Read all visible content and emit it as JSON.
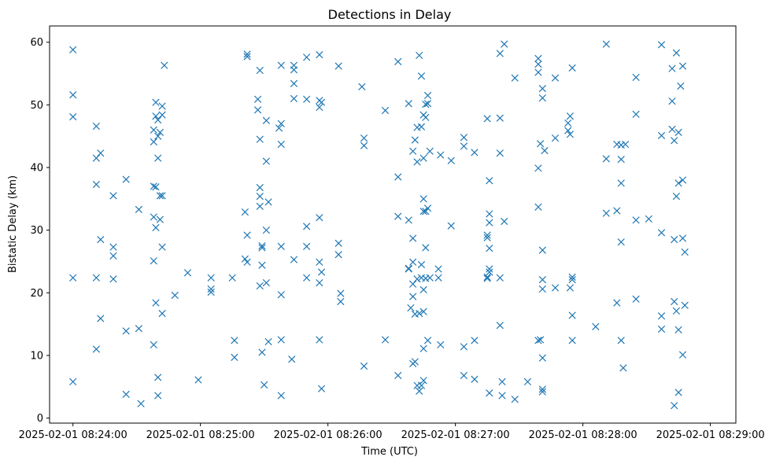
{
  "chart_data": {
    "type": "scatter",
    "title": "Detections in Delay",
    "xlabel": "Time (UTC)",
    "ylabel": "Bistatic Delay (km)",
    "marker": "x",
    "color": "#1f77b4",
    "grid": false,
    "legend": "none",
    "x_ticks": [
      "2025-02-01 08:24:00",
      "2025-02-01 08:25:00",
      "2025-02-01 08:26:00",
      "2025-02-01 08:27:00",
      "2025-02-01 08:28:00",
      "2025-02-01 08:29:00"
    ],
    "y_ticks": [
      "0",
      "10",
      "20",
      "30",
      "40",
      "50",
      "60"
    ],
    "xlim": [
      "2025-02-01 08:23:49",
      "2025-02-01 08:29:12"
    ],
    "ylim": [
      -0.8,
      62.6
    ],
    "points": [
      [
        "2025-02-01 08:24:00",
        58.8
      ],
      [
        "2025-02-01 08:24:00",
        51.6
      ],
      [
        "2025-02-01 08:24:00",
        48.1
      ],
      [
        "2025-02-01 08:24:00",
        22.4
      ],
      [
        "2025-02-01 08:24:00",
        5.8
      ],
      [
        "2025-02-01 08:24:11",
        46.6
      ],
      [
        "2025-02-01 08:24:11",
        41.5
      ],
      [
        "2025-02-01 08:24:13",
        42.3
      ],
      [
        "2025-02-01 08:24:11",
        37.3
      ],
      [
        "2025-02-01 08:24:13",
        28.5
      ],
      [
        "2025-02-01 08:24:11",
        22.4
      ],
      [
        "2025-02-01 08:24:13",
        15.9
      ],
      [
        "2025-02-01 08:24:11",
        11.0
      ],
      [
        "2025-02-01 08:24:19",
        35.5
      ],
      [
        "2025-02-01 08:24:19",
        27.3
      ],
      [
        "2025-02-01 08:24:19",
        25.9
      ],
      [
        "2025-02-01 08:24:19",
        22.2
      ],
      [
        "2025-02-01 08:24:25",
        38.1
      ],
      [
        "2025-02-01 08:24:25",
        13.9
      ],
      [
        "2025-02-01 08:24:25",
        3.8
      ],
      [
        "2025-02-01 08:24:31",
        33.3
      ],
      [
        "2025-02-01 08:24:31",
        14.3
      ],
      [
        "2025-02-01 08:24:32",
        2.3
      ],
      [
        "2025-02-01 08:24:38",
        46.0
      ],
      [
        "2025-02-01 08:24:38",
        44.1
      ],
      [
        "2025-02-01 08:24:38",
        37.0
      ],
      [
        "2025-02-01 08:24:39",
        36.9
      ],
      [
        "2025-02-01 08:24:38",
        32.1
      ],
      [
        "2025-02-01 08:24:39",
        30.4
      ],
      [
        "2025-02-01 08:24:38",
        25.1
      ],
      [
        "2025-02-01 08:24:39",
        18.4
      ],
      [
        "2025-02-01 08:24:38",
        11.7
      ],
      [
        "2025-02-01 08:24:39",
        50.4
      ],
      [
        "2025-02-01 08:24:39",
        48.2
      ],
      [
        "2025-02-01 08:24:40",
        47.6
      ],
      [
        "2025-02-01 08:24:40",
        45.0
      ],
      [
        "2025-02-01 08:24:40",
        41.5
      ],
      [
        "2025-02-01 08:24:41",
        35.5
      ],
      [
        "2025-02-01 08:24:41",
        31.7
      ],
      [
        "2025-02-01 08:24:40",
        6.5
      ],
      [
        "2025-02-01 08:24:40",
        3.6
      ],
      [
        "2025-02-01 08:24:42",
        49.8
      ],
      [
        "2025-02-01 08:24:42",
        48.4
      ],
      [
        "2025-02-01 08:24:41",
        45.6
      ],
      [
        "2025-02-01 08:24:42",
        35.5
      ],
      [
        "2025-02-01 08:24:42",
        27.3
      ],
      [
        "2025-02-01 08:24:42",
        16.7
      ],
      [
        "2025-02-01 08:24:43",
        56.3
      ],
      [
        "2025-02-01 08:24:48",
        19.6
      ],
      [
        "2025-02-01 08:24:54",
        23.2
      ],
      [
        "2025-02-01 08:24:59",
        6.1
      ],
      [
        "2025-02-01 08:25:05",
        22.4
      ],
      [
        "2025-02-01 08:25:05",
        20.6
      ],
      [
        "2025-02-01 08:25:05",
        20.1
      ],
      [
        "2025-02-01 08:25:15",
        22.4
      ],
      [
        "2025-02-01 08:25:16",
        12.4
      ],
      [
        "2025-02-01 08:25:16",
        9.7
      ],
      [
        "2025-02-01 08:25:22",
        58.1
      ],
      [
        "2025-02-01 08:25:22",
        57.7
      ],
      [
        "2025-02-01 08:25:21",
        32.9
      ],
      [
        "2025-02-01 08:25:22",
        29.2
      ],
      [
        "2025-02-01 08:25:21",
        25.4
      ],
      [
        "2025-02-01 08:25:22",
        24.9
      ],
      [
        "2025-02-01 08:25:27",
        50.9
      ],
      [
        "2025-02-01 08:25:27",
        49.2
      ],
      [
        "2025-02-01 08:25:28",
        55.5
      ],
      [
        "2025-02-01 08:25:28",
        44.5
      ],
      [
        "2025-02-01 08:25:28",
        36.8
      ],
      [
        "2025-02-01 08:25:28",
        35.4
      ],
      [
        "2025-02-01 08:25:28",
        33.8
      ],
      [
        "2025-02-01 08:25:29",
        27.5
      ],
      [
        "2025-02-01 08:25:29",
        27.2
      ],
      [
        "2025-02-01 08:25:29",
        24.4
      ],
      [
        "2025-02-01 08:25:28",
        21.1
      ],
      [
        "2025-02-01 08:25:29",
        10.5
      ],
      [
        "2025-02-01 08:25:30",
        5.3
      ],
      [
        "2025-02-01 08:25:31",
        47.5
      ],
      [
        "2025-02-01 08:25:31",
        41.0
      ],
      [
        "2025-02-01 08:25:32",
        34.5
      ],
      [
        "2025-02-01 08:25:31",
        30.0
      ],
      [
        "2025-02-01 08:25:31",
        21.6
      ],
      [
        "2025-02-01 08:25:32",
        12.2
      ],
      [
        "2025-02-01 08:25:37",
        46.3
      ],
      [
        "2025-02-01 08:25:38",
        47.0
      ],
      [
        "2025-02-01 08:25:38",
        56.3
      ],
      [
        "2025-02-01 08:25:38",
        43.7
      ],
      [
        "2025-02-01 08:25:38",
        27.4
      ],
      [
        "2025-02-01 08:25:38",
        19.7
      ],
      [
        "2025-02-01 08:25:38",
        12.5
      ],
      [
        "2025-02-01 08:25:38",
        3.6
      ],
      [
        "2025-02-01 08:25:44",
        56.3
      ],
      [
        "2025-02-01 08:25:44",
        55.6
      ],
      [
        "2025-02-01 08:25:44",
        53.4
      ],
      [
        "2025-02-01 08:25:44",
        51.0
      ],
      [
        "2025-02-01 08:25:44",
        25.3
      ],
      [
        "2025-02-01 08:25:43",
        9.4
      ],
      [
        "2025-02-01 08:25:50",
        57.6
      ],
      [
        "2025-02-01 08:25:50",
        50.9
      ],
      [
        "2025-02-01 08:25:50",
        30.6
      ],
      [
        "2025-02-01 08:25:50",
        27.4
      ],
      [
        "2025-02-01 08:25:50",
        22.4
      ],
      [
        "2025-02-01 08:25:56",
        58.0
      ],
      [
        "2025-02-01 08:25:56",
        50.7
      ],
      [
        "2025-02-01 08:25:57",
        50.4
      ],
      [
        "2025-02-01 08:25:56",
        49.6
      ],
      [
        "2025-02-01 08:25:56",
        32.0
      ],
      [
        "2025-02-01 08:25:56",
        24.9
      ],
      [
        "2025-02-01 08:25:57",
        23.3
      ],
      [
        "2025-02-01 08:25:56",
        21.6
      ],
      [
        "2025-02-01 08:25:56",
        12.5
      ],
      [
        "2025-02-01 08:25:57",
        4.7
      ],
      [
        "2025-02-01 08:26:05",
        56.2
      ],
      [
        "2025-02-01 08:26:05",
        27.9
      ],
      [
        "2025-02-01 08:26:05",
        26.1
      ],
      [
        "2025-02-01 08:26:06",
        19.9
      ],
      [
        "2025-02-01 08:26:06",
        18.6
      ],
      [
        "2025-02-01 08:26:16",
        52.9
      ],
      [
        "2025-02-01 08:26:17",
        44.7
      ],
      [
        "2025-02-01 08:26:17",
        43.5
      ],
      [
        "2025-02-01 08:26:17",
        8.3
      ],
      [
        "2025-02-01 08:26:27",
        49.1
      ],
      [
        "2025-02-01 08:26:27",
        12.5
      ],
      [
        "2025-02-01 08:26:33",
        56.9
      ],
      [
        "2025-02-01 08:26:33",
        38.5
      ],
      [
        "2025-02-01 08:26:33",
        32.2
      ],
      [
        "2025-02-01 08:26:33",
        6.8
      ],
      [
        "2025-02-01 08:26:38",
        50.2
      ],
      [
        "2025-02-01 08:26:38",
        31.6
      ],
      [
        "2025-02-01 08:26:38",
        23.8
      ],
      [
        "2025-02-01 08:26:38",
        23.9
      ],
      [
        "2025-02-01 08:26:39",
        17.6
      ],
      [
        "2025-02-01 08:26:40",
        42.6
      ],
      [
        "2025-02-01 08:26:40",
        28.7
      ],
      [
        "2025-02-01 08:26:40",
        24.9
      ],
      [
        "2025-02-01 08:26:40",
        21.4
      ],
      [
        "2025-02-01 08:26:40",
        19.4
      ],
      [
        "2025-02-01 08:26:41",
        16.6
      ],
      [
        "2025-02-01 08:26:41",
        9.0
      ],
      [
        "2025-02-01 08:26:40",
        8.7
      ],
      [
        "2025-02-01 08:26:41",
        44.4
      ],
      [
        "2025-02-01 08:26:42",
        46.4
      ],
      [
        "2025-02-01 08:26:42",
        40.9
      ],
      [
        "2025-02-01 08:26:42",
        22.2
      ],
      [
        "2025-02-01 08:26:43",
        16.7
      ],
      [
        "2025-02-01 08:26:42",
        5.2
      ],
      [
        "2025-02-01 08:26:43",
        4.3
      ],
      [
        "2025-02-01 08:26:43",
        57.9
      ],
      [
        "2025-02-01 08:26:44",
        54.6
      ],
      [
        "2025-02-01 08:26:44",
        46.5
      ],
      [
        "2025-02-01 08:26:44",
        24.5
      ],
      [
        "2025-02-01 08:26:44",
        22.4
      ],
      [
        "2025-02-01 08:26:44",
        5.2
      ],
      [
        "2025-02-01 08:26:45",
        48.4
      ],
      [
        "2025-02-01 08:26:45",
        41.5
      ],
      [
        "2025-02-01 08:26:45",
        35.0
      ],
      [
        "2025-02-01 08:26:45",
        33.0
      ],
      [
        "2025-02-01 08:26:45",
        20.5
      ],
      [
        "2025-02-01 08:26:45",
        17.0
      ],
      [
        "2025-02-01 08:26:45",
        11.1
      ],
      [
        "2025-02-01 08:26:45",
        6.0
      ],
      [
        "2025-02-01 08:26:46",
        50.1
      ],
      [
        "2025-02-01 08:26:46",
        48.0
      ],
      [
        "2025-02-01 08:26:46",
        33.0
      ],
      [
        "2025-02-01 08:26:46",
        27.2
      ],
      [
        "2025-02-01 08:26:46",
        22.3
      ],
      [
        "2025-02-01 08:26:47",
        51.5
      ],
      [
        "2025-02-01 08:26:47",
        50.2
      ],
      [
        "2025-02-01 08:26:48",
        42.6
      ],
      [
        "2025-02-01 08:26:47",
        33.5
      ],
      [
        "2025-02-01 08:26:48",
        22.4
      ],
      [
        "2025-02-01 08:26:47",
        12.4
      ],
      [
        "2025-02-01 08:26:52",
        23.8
      ],
      [
        "2025-02-01 08:26:52",
        22.4
      ],
      [
        "2025-02-01 08:26:53",
        42.0
      ],
      [
        "2025-02-01 08:26:53",
        11.7
      ],
      [
        "2025-02-01 08:26:58",
        41.1
      ],
      [
        "2025-02-01 08:26:58",
        30.7
      ],
      [
        "2025-02-01 08:27:04",
        44.8
      ],
      [
        "2025-02-01 08:27:04",
        43.4
      ],
      [
        "2025-02-01 08:27:04",
        11.4
      ],
      [
        "2025-02-01 08:27:04",
        6.8
      ],
      [
        "2025-02-01 08:27:09",
        42.4
      ],
      [
        "2025-02-01 08:27:09",
        12.4
      ],
      [
        "2025-02-01 08:27:09",
        6.2
      ],
      [
        "2025-02-01 08:27:15",
        47.8
      ],
      [
        "2025-02-01 08:27:16",
        37.9
      ],
      [
        "2025-02-01 08:27:16",
        32.6
      ],
      [
        "2025-02-01 08:27:16",
        31.2
      ],
      [
        "2025-02-01 08:27:15",
        29.2
      ],
      [
        "2025-02-01 08:27:15",
        28.8
      ],
      [
        "2025-02-01 08:27:16",
        27.1
      ],
      [
        "2025-02-01 08:27:16",
        23.8
      ],
      [
        "2025-02-01 08:27:16",
        23.3
      ],
      [
        "2025-02-01 08:27:15",
        22.5
      ],
      [
        "2025-02-01 08:27:15",
        22.3
      ],
      [
        "2025-02-01 08:27:16",
        4.0
      ],
      [
        "2025-02-01 08:27:21",
        58.2
      ],
      [
        "2025-02-01 08:27:21",
        47.9
      ],
      [
        "2025-02-01 08:27:21",
        42.3
      ],
      [
        "2025-02-01 08:27:21",
        22.4
      ],
      [
        "2025-02-01 08:27:21",
        14.8
      ],
      [
        "2025-02-01 08:27:22",
        5.8
      ],
      [
        "2025-02-01 08:27:22",
        3.6
      ],
      [
        "2025-02-01 08:27:23",
        59.7
      ],
      [
        "2025-02-01 08:27:23",
        31.4
      ],
      [
        "2025-02-01 08:27:28",
        54.3
      ],
      [
        "2025-02-01 08:27:28",
        3.0
      ],
      [
        "2025-02-01 08:27:34",
        5.8
      ],
      [
        "2025-02-01 08:27:39",
        55.2
      ],
      [
        "2025-02-01 08:27:39",
        57.4
      ],
      [
        "2025-02-01 08:27:39",
        56.5
      ],
      [
        "2025-02-01 08:27:39",
        39.9
      ],
      [
        "2025-02-01 08:27:39",
        33.7
      ],
      [
        "2025-02-01 08:27:39",
        12.4
      ],
      [
        "2025-02-01 08:27:40",
        12.5
      ],
      [
        "2025-02-01 08:27:40",
        43.8
      ],
      [
        "2025-02-01 08:27:41",
        52.6
      ],
      [
        "2025-02-01 08:27:41",
        51.1
      ],
      [
        "2025-02-01 08:27:41",
        26.8
      ],
      [
        "2025-02-01 08:27:41",
        22.1
      ],
      [
        "2025-02-01 08:27:41",
        20.6
      ],
      [
        "2025-02-01 08:27:41",
        9.6
      ],
      [
        "2025-02-01 08:27:41",
        4.6
      ],
      [
        "2025-02-01 08:27:41",
        4.2
      ],
      [
        "2025-02-01 08:27:42",
        42.7
      ],
      [
        "2025-02-01 08:27:47",
        54.3
      ],
      [
        "2025-02-01 08:27:47",
        44.7
      ],
      [
        "2025-02-01 08:27:47",
        20.8
      ],
      [
        "2025-02-01 08:27:53",
        47.1
      ],
      [
        "2025-02-01 08:27:53",
        45.9
      ],
      [
        "2025-02-01 08:27:54",
        48.2
      ],
      [
        "2025-02-01 08:27:54",
        45.3
      ],
      [
        "2025-02-01 08:27:54",
        20.8
      ],
      [
        "2025-02-01 08:27:55",
        55.9
      ],
      [
        "2025-02-01 08:27:55",
        22.5
      ],
      [
        "2025-02-01 08:27:55",
        22.1
      ],
      [
        "2025-02-01 08:27:55",
        16.4
      ],
      [
        "2025-02-01 08:27:55",
        12.4
      ],
      [
        "2025-02-01 08:28:06",
        14.6
      ],
      [
        "2025-02-01 08:28:11",
        59.7
      ],
      [
        "2025-02-01 08:28:11",
        41.4
      ],
      [
        "2025-02-01 08:28:11",
        32.7
      ],
      [
        "2025-02-01 08:28:16",
        43.7
      ],
      [
        "2025-02-01 08:28:16",
        33.1
      ],
      [
        "2025-02-01 08:28:16",
        18.4
      ],
      [
        "2025-02-01 08:28:18",
        43.6
      ],
      [
        "2025-02-01 08:28:18",
        41.3
      ],
      [
        "2025-02-01 08:28:18",
        37.5
      ],
      [
        "2025-02-01 08:28:18",
        28.1
      ],
      [
        "2025-02-01 08:28:18",
        12.4
      ],
      [
        "2025-02-01 08:28:19",
        8.0
      ],
      [
        "2025-02-01 08:28:20",
        43.7
      ],
      [
        "2025-02-01 08:28:25",
        54.4
      ],
      [
        "2025-02-01 08:28:25",
        48.5
      ],
      [
        "2025-02-01 08:28:25",
        31.6
      ],
      [
        "2025-02-01 08:28:25",
        19.0
      ],
      [
        "2025-02-01 08:28:31",
        31.8
      ],
      [
        "2025-02-01 08:28:37",
        59.6
      ],
      [
        "2025-02-01 08:28:37",
        45.1
      ],
      [
        "2025-02-01 08:28:37",
        29.6
      ],
      [
        "2025-02-01 08:28:37",
        16.3
      ],
      [
        "2025-02-01 08:28:37",
        14.2
      ],
      [
        "2025-02-01 08:28:42",
        55.8
      ],
      [
        "2025-02-01 08:28:42",
        50.6
      ],
      [
        "2025-02-01 08:28:42",
        46.1
      ],
      [
        "2025-02-01 08:28:43",
        44.3
      ],
      [
        "2025-02-01 08:28:43",
        28.5
      ],
      [
        "2025-02-01 08:28:43",
        18.6
      ],
      [
        "2025-02-01 08:28:43",
        2.0
      ],
      [
        "2025-02-01 08:28:44",
        58.3
      ],
      [
        "2025-02-01 08:28:44",
        35.4
      ],
      [
        "2025-02-01 08:28:44",
        17.1
      ],
      [
        "2025-02-01 08:28:45",
        45.6
      ],
      [
        "2025-02-01 08:28:45",
        37.5
      ],
      [
        "2025-02-01 08:28:45",
        14.1
      ],
      [
        "2025-02-01 08:28:45",
        4.1
      ],
      [
        "2025-02-01 08:28:46",
        53.0
      ],
      [
        "2025-02-01 08:28:47",
        56.2
      ],
      [
        "2025-02-01 08:28:47",
        38.0
      ],
      [
        "2025-02-01 08:28:47",
        28.7
      ],
      [
        "2025-02-01 08:28:47",
        10.1
      ],
      [
        "2025-02-01 08:28:48",
        26.5
      ],
      [
        "2025-02-01 08:28:48",
        18.0
      ]
    ]
  }
}
